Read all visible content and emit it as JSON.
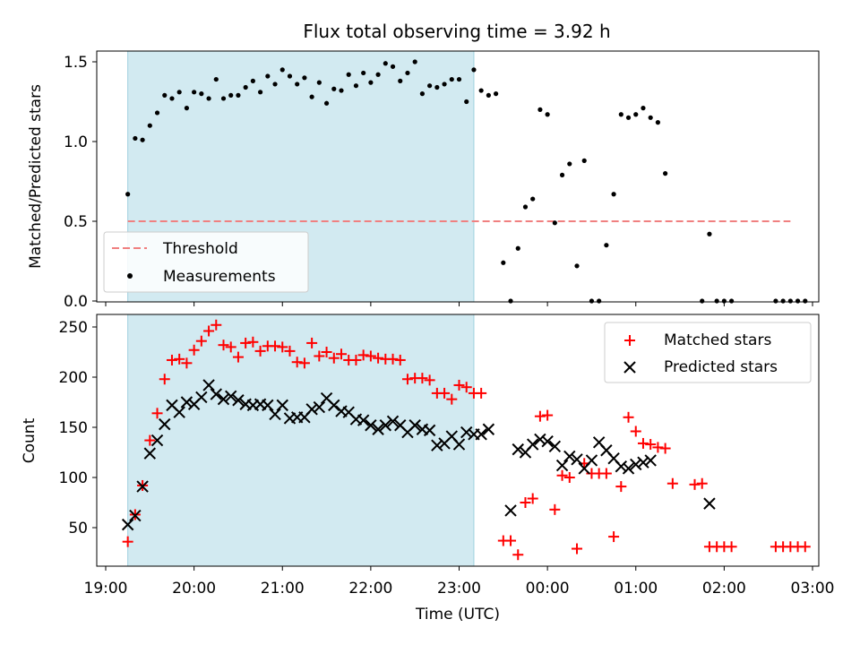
{
  "chart_data": [
    {
      "type": "scatter",
      "title": "Flux total observing time = 3.92 h",
      "xlabel": "",
      "ylabel": "Matched/Predicted stars",
      "xlim": [
        "19:00",
        "03:00"
      ],
      "ylim": [
        0,
        1.57
      ],
      "yticks": [
        "0.0",
        "0.5",
        "1.0",
        "1.5"
      ],
      "shaded_span": [
        "19:15",
        "23:10"
      ],
      "threshold": {
        "name": "Threshold",
        "value": 0.5,
        "x_start": "19:15",
        "x_end": "02:45",
        "color": "#f08080"
      },
      "legend": {
        "position": "lower-left",
        "entries": [
          "Threshold",
          "Measurements"
        ]
      },
      "series": [
        {
          "name": "Measurements",
          "color": "#000000",
          "points": [
            [
              "19:15",
              0.67
            ],
            [
              "19:20",
              1.02
            ],
            [
              "19:25",
              1.01
            ],
            [
              "19:30",
              1.1
            ],
            [
              "19:35",
              1.18
            ],
            [
              "19:40",
              1.29
            ],
            [
              "19:45",
              1.27
            ],
            [
              "19:50",
              1.31
            ],
            [
              "19:55",
              1.21
            ],
            [
              "20:00",
              1.31
            ],
            [
              "20:05",
              1.3
            ],
            [
              "20:10",
              1.27
            ],
            [
              "20:15",
              1.39
            ],
            [
              "20:20",
              1.27
            ],
            [
              "20:25",
              1.29
            ],
            [
              "20:30",
              1.29
            ],
            [
              "20:35",
              1.34
            ],
            [
              "20:40",
              1.38
            ],
            [
              "20:45",
              1.31
            ],
            [
              "20:50",
              1.41
            ],
            [
              "20:55",
              1.36
            ],
            [
              "21:00",
              1.45
            ],
            [
              "21:05",
              1.41
            ],
            [
              "21:10",
              1.36
            ],
            [
              "21:15",
              1.4
            ],
            [
              "21:20",
              1.28
            ],
            [
              "21:25",
              1.37
            ],
            [
              "21:30",
              1.24
            ],
            [
              "21:35",
              1.33
            ],
            [
              "21:40",
              1.32
            ],
            [
              "21:45",
              1.42
            ],
            [
              "21:50",
              1.35
            ],
            [
              "21:55",
              1.43
            ],
            [
              "22:00",
              1.37
            ],
            [
              "22:05",
              1.42
            ],
            [
              "22:10",
              1.49
            ],
            [
              "22:15",
              1.47
            ],
            [
              "22:20",
              1.38
            ],
            [
              "22:25",
              1.43
            ],
            [
              "22:30",
              1.5
            ],
            [
              "22:35",
              1.3
            ],
            [
              "22:40",
              1.35
            ],
            [
              "22:45",
              1.34
            ],
            [
              "22:50",
              1.36
            ],
            [
              "22:55",
              1.39
            ],
            [
              "23:00",
              1.39
            ],
            [
              "23:05",
              1.25
            ],
            [
              "23:10",
              1.45
            ],
            [
              "23:15",
              1.32
            ],
            [
              "23:20",
              1.29
            ],
            [
              "23:25",
              1.3
            ],
            [
              "23:30",
              0.24
            ],
            [
              "23:35",
              0.0
            ],
            [
              "23:40",
              0.33
            ],
            [
              "23:45",
              0.59
            ],
            [
              "23:50",
              0.64
            ],
            [
              "23:55",
              1.2
            ],
            [
              "00:00",
              1.17
            ],
            [
              "00:05",
              0.49
            ],
            [
              "00:10",
              0.79
            ],
            [
              "00:15",
              0.86
            ],
            [
              "00:20",
              0.22
            ],
            [
              "00:25",
              0.88
            ],
            [
              "00:30",
              0.0
            ],
            [
              "00:35",
              0.0
            ],
            [
              "00:40",
              0.35
            ],
            [
              "00:45",
              0.67
            ],
            [
              "00:50",
              1.17
            ],
            [
              "00:55",
              1.15
            ],
            [
              "01:00",
              1.17
            ],
            [
              "01:05",
              1.21
            ],
            [
              "01:10",
              1.15
            ],
            [
              "01:15",
              1.12
            ],
            [
              "01:20",
              0.8
            ],
            [
              "01:45",
              0.0
            ],
            [
              "01:50",
              0.42
            ],
            [
              "01:55",
              0.0
            ],
            [
              "02:00",
              0.0
            ],
            [
              "02:05",
              0.0
            ],
            [
              "02:35",
              0.0
            ],
            [
              "02:40",
              0.0
            ],
            [
              "02:45",
              0.0
            ],
            [
              "02:50",
              0.0
            ],
            [
              "02:55",
              0.0
            ]
          ]
        }
      ]
    },
    {
      "type": "scatter",
      "title": "",
      "xlabel": "Time (UTC)",
      "ylabel": "Count",
      "xlim": [
        "19:00",
        "03:00"
      ],
      "ylim": [
        10,
        265
      ],
      "xticks": [
        "19:00",
        "20:00",
        "21:00",
        "22:00",
        "23:00",
        "00:00",
        "01:00",
        "02:00",
        "03:00"
      ],
      "yticks": [
        "50",
        "100",
        "150",
        "200",
        "250"
      ],
      "shaded_span": [
        "19:15",
        "23:10"
      ],
      "legend": {
        "position": "upper-right",
        "entries": [
          "Matched stars",
          "Predicted stars"
        ]
      },
      "series": [
        {
          "name": "Matched stars",
          "color": "#ff0000",
          "points": [
            [
              "19:15",
              36
            ],
            [
              "19:20",
              63
            ],
            [
              "19:25",
              92
            ],
            [
              "19:30",
              137
            ],
            [
              "19:35",
              164
            ],
            [
              "19:40",
              198
            ],
            [
              "19:45",
              217
            ],
            [
              "19:50",
              218
            ],
            [
              "19:55",
              214
            ],
            [
              "20:00",
              227
            ],
            [
              "20:05",
              236
            ],
            [
              "20:10",
              246
            ],
            [
              "20:15",
              252
            ],
            [
              "20:20",
              232
            ],
            [
              "20:25",
              230
            ],
            [
              "20:30",
              220
            ],
            [
              "20:35",
              234
            ],
            [
              "20:40",
              235
            ],
            [
              "20:45",
              226
            ],
            [
              "20:50",
              231
            ],
            [
              "20:55",
              231
            ],
            [
              "21:00",
              230
            ],
            [
              "21:05",
              226
            ],
            [
              "21:10",
              215
            ],
            [
              "21:15",
              214
            ],
            [
              "21:20",
              234
            ],
            [
              "21:25",
              221
            ],
            [
              "21:30",
              225
            ],
            [
              "21:35",
              219
            ],
            [
              "21:40",
              223
            ],
            [
              "21:45",
              217
            ],
            [
              "21:50",
              217
            ],
            [
              "21:55",
              222
            ],
            [
              "22:00",
              221
            ],
            [
              "22:05",
              219
            ],
            [
              "22:10",
              218
            ],
            [
              "22:15",
              218
            ],
            [
              "22:20",
              217
            ],
            [
              "22:25",
              198
            ],
            [
              "22:30",
              199
            ],
            [
              "22:35",
              199
            ],
            [
              "22:40",
              197
            ],
            [
              "22:45",
              184
            ],
            [
              "22:50",
              184
            ],
            [
              "22:55",
              178
            ],
            [
              "23:00",
              192
            ],
            [
              "23:05",
              190
            ],
            [
              "23:10",
              184
            ],
            [
              "23:15",
              184
            ],
            [
              "23:30",
              37
            ],
            [
              "23:35",
              37
            ],
            [
              "23:40",
              23
            ],
            [
              "23:45",
              75
            ],
            [
              "23:50",
              79
            ],
            [
              "23:55",
              161
            ],
            [
              "00:00",
              162
            ],
            [
              "00:05",
              68
            ],
            [
              "00:10",
              102
            ],
            [
              "00:15",
              100
            ],
            [
              "00:20",
              29
            ],
            [
              "00:25",
              114
            ],
            [
              "00:30",
              104
            ],
            [
              "00:35",
              104
            ],
            [
              "00:40",
              104
            ],
            [
              "00:45",
              41
            ],
            [
              "00:50",
              91
            ],
            [
              "00:55",
              160
            ],
            [
              "01:00",
              146
            ],
            [
              "01:05",
              134
            ],
            [
              "01:10",
              133
            ],
            [
              "01:15",
              130
            ],
            [
              "01:20",
              129
            ],
            [
              "01:25",
              94
            ],
            [
              "01:40",
              93
            ],
            [
              "01:45",
              94
            ],
            [
              "01:50",
              31
            ],
            [
              "01:55",
              31
            ],
            [
              "02:00",
              31
            ],
            [
              "02:05",
              31
            ],
            [
              "02:35",
              31
            ],
            [
              "02:40",
              31
            ],
            [
              "02:45",
              31
            ],
            [
              "02:50",
              31
            ],
            [
              "02:55",
              31
            ]
          ]
        },
        {
          "name": "Predicted stars",
          "color": "#000000",
          "points": [
            [
              "19:15",
              53
            ],
            [
              "19:20",
              62
            ],
            [
              "19:25",
              91
            ],
            [
              "19:30",
              124
            ],
            [
              "19:35",
              137
            ],
            [
              "19:40",
              153
            ],
            [
              "19:45",
              172
            ],
            [
              "19:50",
              165
            ],
            [
              "19:55",
              175
            ],
            [
              "20:00",
              173
            ],
            [
              "20:05",
              180
            ],
            [
              "20:10",
              192
            ],
            [
              "20:15",
              183
            ],
            [
              "20:20",
              178
            ],
            [
              "20:25",
              181
            ],
            [
              "20:30",
              177
            ],
            [
              "20:35",
              173
            ],
            [
              "20:40",
              172
            ],
            [
              "20:45",
              173
            ],
            [
              "20:50",
              172
            ],
            [
              "20:55",
              163
            ],
            [
              "21:00",
              172
            ],
            [
              "21:05",
              159
            ],
            [
              "21:10",
              160
            ],
            [
              "21:15",
              160
            ],
            [
              "21:20",
              168
            ],
            [
              "21:25",
              170
            ],
            [
              "21:30",
              179
            ],
            [
              "21:35",
              172
            ],
            [
              "21:40",
              166
            ],
            [
              "21:45",
              165
            ],
            [
              "21:50",
              158
            ],
            [
              "21:55",
              157
            ],
            [
              "22:00",
              152
            ],
            [
              "22:05",
              148
            ],
            [
              "22:10",
              152
            ],
            [
              "22:15",
              156
            ],
            [
              "22:20",
              152
            ],
            [
              "22:25",
              145
            ],
            [
              "22:30",
              152
            ],
            [
              "22:35",
              148
            ],
            [
              "22:40",
              147
            ],
            [
              "22:45",
              132
            ],
            [
              "22:50",
              134
            ],
            [
              "22:55",
              141
            ],
            [
              "23:00",
              133
            ],
            [
              "23:05",
              145
            ],
            [
              "23:10",
              143
            ],
            [
              "23:15",
              143
            ],
            [
              "23:20",
              148
            ],
            [
              "23:35",
              67
            ],
            [
              "23:40",
              128
            ],
            [
              "23:45",
              125
            ],
            [
              "23:50",
              133
            ],
            [
              "23:55",
              138
            ],
            [
              "00:00",
              136
            ],
            [
              "00:05",
              131
            ],
            [
              "00:10",
              112
            ],
            [
              "00:15",
              121
            ],
            [
              "00:20",
              118
            ],
            [
              "00:25",
              109
            ],
            [
              "00:30",
              117
            ],
            [
              "00:35",
              135
            ],
            [
              "00:40",
              127
            ],
            [
              "00:45",
              119
            ],
            [
              "00:50",
              111
            ],
            [
              "00:55",
              109
            ],
            [
              "01:00",
              113
            ],
            [
              "01:05",
              115
            ],
            [
              "01:10",
              117
            ],
            [
              "01:50",
              74
            ]
          ]
        }
      ]
    }
  ]
}
